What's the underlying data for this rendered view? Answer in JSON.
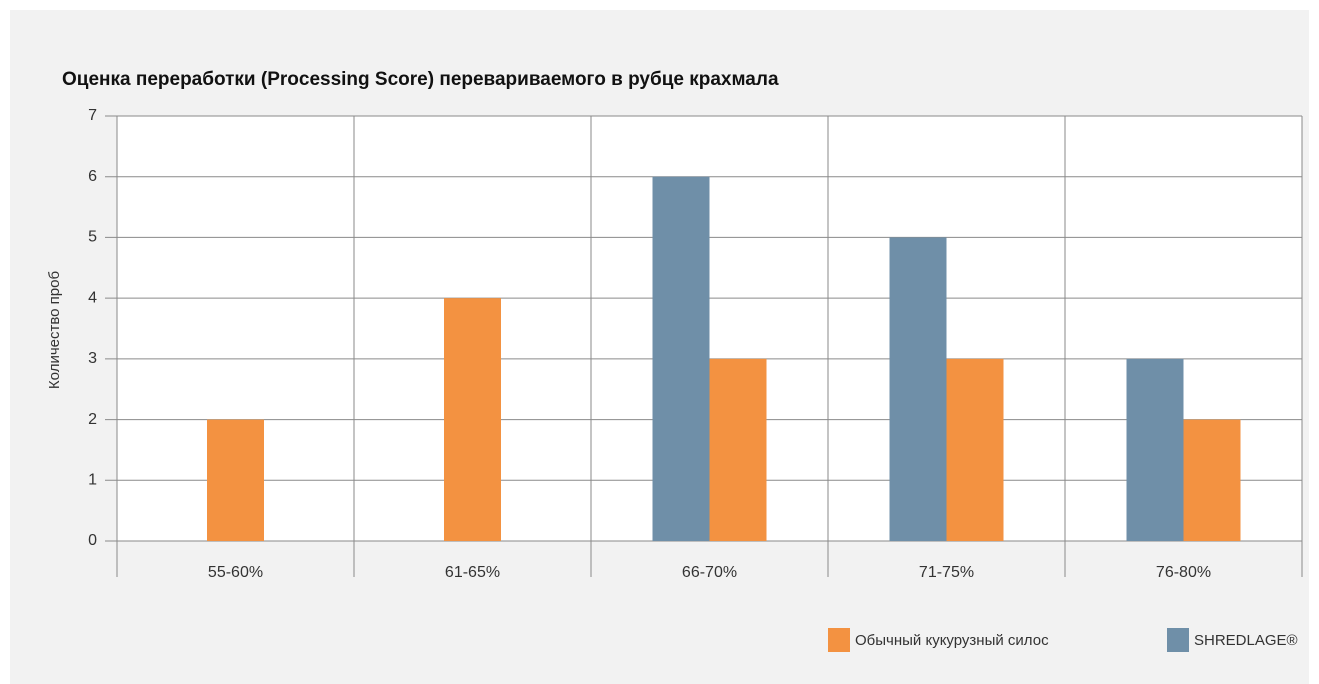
{
  "chart_data": {
    "type": "bar",
    "title": "Оценка переработки (Processing Score) перевариваемого в рубце крахмала",
    "y_label": "Количество проб",
    "categories": [
      "55-60%",
      "61-65%",
      "66-70%",
      "71-75%",
      "76-80%"
    ],
    "series": [
      {
        "name": "Обычный кукурузный силос",
        "color": "#f39241",
        "values": [
          2,
          4,
          3,
          3,
          2
        ]
      },
      {
        "name": "SHREDLAGE®",
        "color": "#6f8fa8",
        "values": [
          null,
          null,
          6,
          5,
          3
        ]
      }
    ],
    "ylim": [
      0,
      7
    ],
    "yticks": [
      0,
      1,
      2,
      3,
      4,
      5,
      6,
      7
    ],
    "grid": true
  }
}
